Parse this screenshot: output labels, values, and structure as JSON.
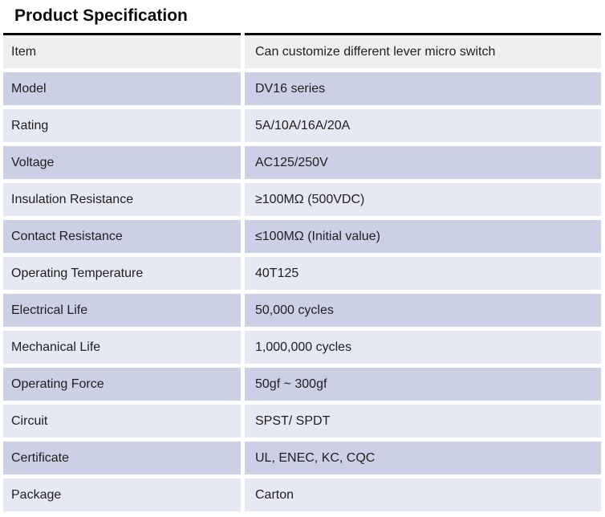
{
  "page": {
    "title": "Product Specification"
  },
  "table": {
    "rows": [
      {
        "label": "Item",
        "value": "Can customize different lever micro switch"
      },
      {
        "label": "Model",
        "value": "DV16 series"
      },
      {
        "label": "Rating",
        "value": "5A/10A/16A/20A"
      },
      {
        "label": "Voltage",
        "value": "AC125/250V"
      },
      {
        "label": "Insulation Resistance",
        "value": "≥100MΩ (500VDC)"
      },
      {
        "label": "Contact Resistance",
        "value": "≤100MΩ (Initial value)"
      },
      {
        "label": "Operating Temperature",
        "value": "40T125"
      },
      {
        "label": "Electrical Life",
        "value": "50,000 cycles"
      },
      {
        "label": "Mechanical Life",
        "value": "1,000,000 cycles"
      },
      {
        "label": "Operating Force",
        "value": "50gf ~ 300gf"
      },
      {
        "label": "Circuit",
        "value": "SPST/ SPDT"
      },
      {
        "label": "Certificate",
        "value": "UL, ENEC, KC, CQC"
      },
      {
        "label": "Package",
        "value": "Carton"
      }
    ],
    "colors": {
      "top_border": "#000000",
      "header_row_bg": "#efefef",
      "row_dark_bg": "#cbd0e5",
      "row_light_bg": "#e6e8f4",
      "text": "#1f1f1f"
    }
  }
}
